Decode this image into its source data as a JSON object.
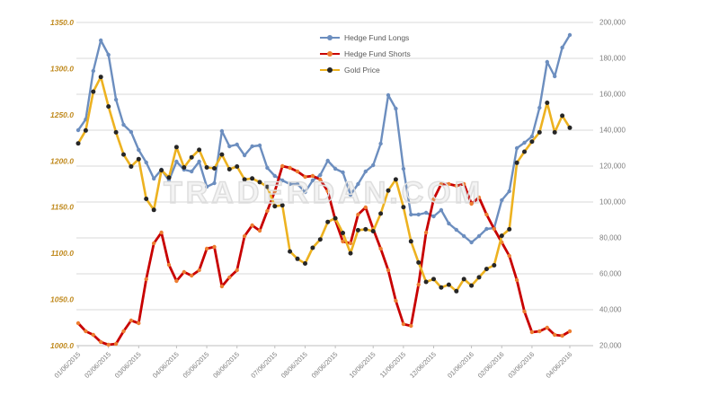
{
  "watermark": "TRADERDAN.COM",
  "chart_data": {
    "type": "line",
    "title": "",
    "grid": true,
    "legend_position": "top-center",
    "x_labels": [
      "01/06/2015",
      "02/06/2015",
      "03/06/2015",
      "04/06/2015",
      "05/06/2015",
      "06/06/2015",
      "07/06/2015",
      "08/06/2015",
      "09/06/2015",
      "10/06/2015",
      "11/06/2015",
      "12/06/2015",
      "01/06/2016",
      "02/06/2016",
      "03/06/2016",
      "04/06/2016"
    ],
    "x_label_point_indices": [
      0,
      4,
      8,
      13,
      17,
      21,
      26,
      30,
      34,
      39,
      43,
      47,
      52,
      56,
      60,
      65
    ],
    "left_axis": {
      "title": "",
      "min": 1000,
      "max": 1350,
      "step": 50,
      "labels": [
        "1350.0",
        "1300.0",
        "1250.0",
        "1200.0",
        "1150.0",
        "1100.0",
        "1050.0",
        "1000.0"
      ],
      "label_color": "#c08a1e"
    },
    "right_axis": {
      "title": "",
      "min": 20000,
      "max": 200000,
      "step": 20000,
      "labels": [
        "200,000",
        "180,000",
        "160,000",
        "140,000",
        "120,000",
        "100,000",
        "80,000",
        "60,000",
        "40,000",
        "20,000"
      ],
      "label_color": "#7f7f7f"
    },
    "series": [
      {
        "name": "Hedge Fund Longs",
        "axis": "right",
        "color": "#6c8ebf",
        "marker_color": "#6c8ebf",
        "values": [
          140000,
          146000,
          173000,
          190000,
          182000,
          157000,
          143000,
          139000,
          129000,
          122000,
          113000,
          118000,
          112000,
          122500,
          118000,
          117000,
          122500,
          108500,
          110500,
          139500,
          131000,
          132000,
          126000,
          131000,
          131500,
          119000,
          114500,
          112000,
          110000,
          110000,
          105500,
          112000,
          115000,
          123000,
          118500,
          116500,
          104000,
          110000,
          117000,
          120500,
          132500,
          159500,
          152000,
          118500,
          93000,
          93000,
          94000,
          92000,
          95500,
          88000,
          84500,
          81000,
          77500,
          81000,
          85000,
          85500,
          101000,
          106000,
          130000,
          133000,
          136500,
          152500,
          178000,
          170000,
          186000,
          193000
        ]
      },
      {
        "name": "Hedge Fund Shorts",
        "axis": "right",
        "color": "#c80000",
        "marker_color": "#ed7d31",
        "values": [
          32500,
          28000,
          26000,
          22000,
          20500,
          21000,
          28000,
          34000,
          32500,
          57000,
          77000,
          83000,
          65000,
          56000,
          61000,
          59000,
          62000,
          74000,
          75000,
          53000,
          58000,
          62000,
          81000,
          87000,
          84000,
          95000,
          106000,
          120000,
          119000,
          117000,
          114000,
          114500,
          112500,
          106000,
          90000,
          78000,
          77000,
          93000,
          97000,
          85000,
          74000,
          62000,
          45000,
          32000,
          31000,
          54000,
          83000,
          101500,
          110000,
          110000,
          109000,
          110000,
          99000,
          102500,
          93000,
          85000,
          77500,
          70000,
          56500,
          39000,
          27500,
          28000,
          30000,
          26000,
          25500,
          28000
        ]
      },
      {
        "name": "Gold Price",
        "axis": "left",
        "color": "#edb220",
        "marker_color": "#262626",
        "values": [
          1219,
          1233,
          1275,
          1291,
          1259,
          1231,
          1207,
          1194,
          1202,
          1159,
          1147,
          1190,
          1182,
          1215,
          1193,
          1204,
          1212,
          1193,
          1192,
          1207,
          1191,
          1194,
          1180,
          1181,
          1177,
          1172,
          1151,
          1152,
          1102,
          1094,
          1089,
          1106,
          1115,
          1134,
          1138,
          1122,
          1100,
          1125,
          1126,
          1124,
          1143,
          1168,
          1180,
          1150,
          1113,
          1090,
          1069,
          1072,
          1063,
          1066,
          1059,
          1072,
          1065,
          1074,
          1083,
          1087,
          1119,
          1126,
          1198,
          1210,
          1221,
          1231,
          1263,
          1231,
          1249,
          1236
        ]
      }
    ],
    "gridline_color": "#d9d9d9",
    "axis_line_color": "#bfbfbf"
  }
}
